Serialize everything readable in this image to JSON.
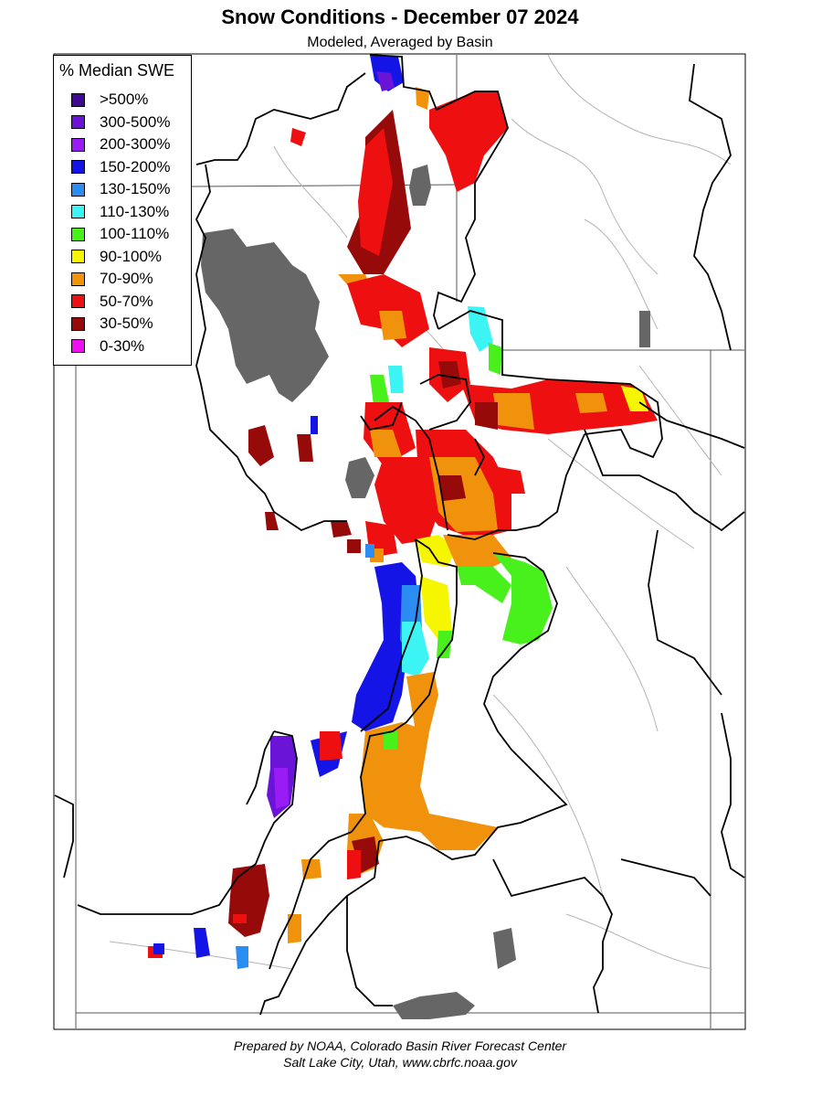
{
  "header": {
    "title": "Snow Conditions - December 07 2024",
    "subtitle": "Modeled, Averaged by Basin"
  },
  "legend": {
    "title": "% Median SWE",
    "items": [
      {
        "label": ">500%",
        "color": "#3d0a91"
      },
      {
        "label": "300-500%",
        "color": "#6a14d8"
      },
      {
        "label": "200-300%",
        "color": "#9a1cf5"
      },
      {
        "label": "150-200%",
        "color": "#1414e6"
      },
      {
        "label": "130-150%",
        "color": "#2b8cf2"
      },
      {
        "label": "110-130%",
        "color": "#3cf4f4"
      },
      {
        "label": "100-110%",
        "color": "#48f01c"
      },
      {
        "label": "90-100%",
        "color": "#f6f600"
      },
      {
        "label": "70-90%",
        "color": "#f0920c"
      },
      {
        "label": "50-70%",
        "color": "#ee1010"
      },
      {
        "label": "30-50%",
        "color": "#960a0a"
      },
      {
        "label": "0-30%",
        "color": "#ee10ee"
      }
    ]
  },
  "map": {
    "water_color": "#666666",
    "basin_border_color": "#000000",
    "river_color": "#b4b4b4"
  },
  "footer": {
    "line1": "Prepared by NOAA, Colorado Basin River Forecast Center",
    "line2": "Salt Lake City, Utah, www.cbrfc.noaa.gov"
  }
}
